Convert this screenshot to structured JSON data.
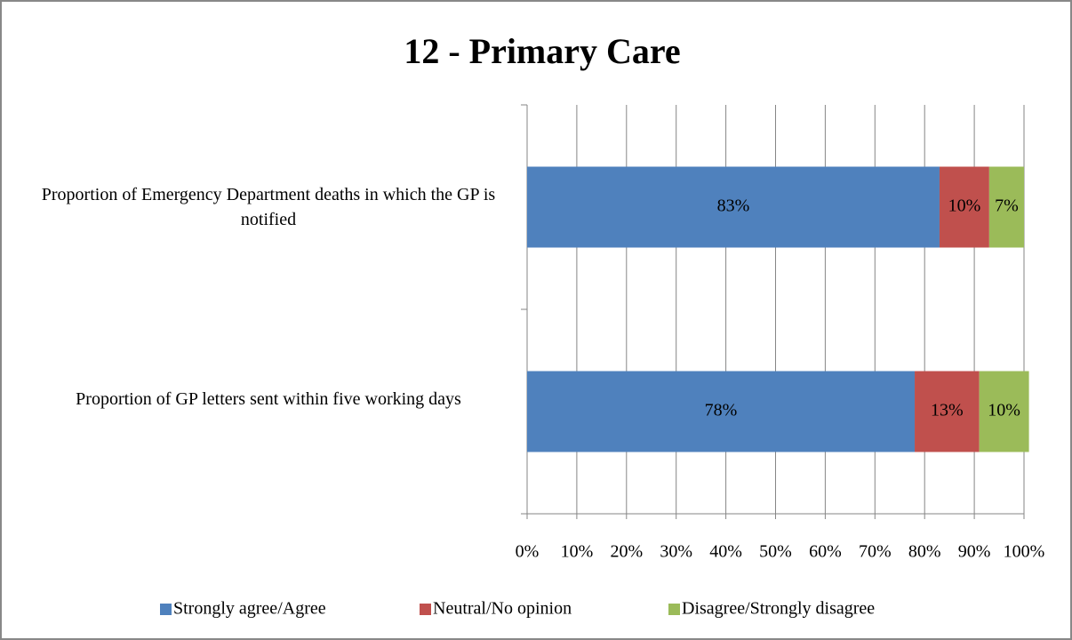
{
  "chart_data": {
    "type": "bar",
    "orientation": "horizontal",
    "stacked": true,
    "title": "12 - Primary Care",
    "categories": [
      "Proportion of Emergency Department deaths in which the GP is notified",
      "Proportion of GP letters sent within five working days"
    ],
    "series": [
      {
        "name": "Strongly agree/Agree",
        "color": "#4f81bd",
        "values": [
          83,
          78
        ],
        "value_labels": [
          "83%",
          "78%"
        ]
      },
      {
        "name": "Neutral/No opinion",
        "color": "#c0504d",
        "values": [
          10,
          13
        ],
        "value_labels": [
          "10%",
          "13%"
        ]
      },
      {
        "name": "Disagree/Strongly disagree",
        "color": "#9bbb59",
        "values": [
          7,
          10
        ],
        "value_labels": [
          "7%",
          "10%"
        ]
      }
    ],
    "xlim": [
      0,
      100
    ],
    "xticks": [
      {
        "value": 0,
        "label": "0%"
      },
      {
        "value": 10,
        "label": "10%"
      },
      {
        "value": 20,
        "label": "20%"
      },
      {
        "value": 30,
        "label": "30%"
      },
      {
        "value": 40,
        "label": "40%"
      },
      {
        "value": 50,
        "label": "50%"
      },
      {
        "value": 60,
        "label": "60%"
      },
      {
        "value": 70,
        "label": "70%"
      },
      {
        "value": 80,
        "label": "80%"
      },
      {
        "value": 90,
        "label": "90%"
      },
      {
        "value": 100,
        "label": "100%"
      }
    ],
    "grid": true,
    "legend": "bottom"
  }
}
